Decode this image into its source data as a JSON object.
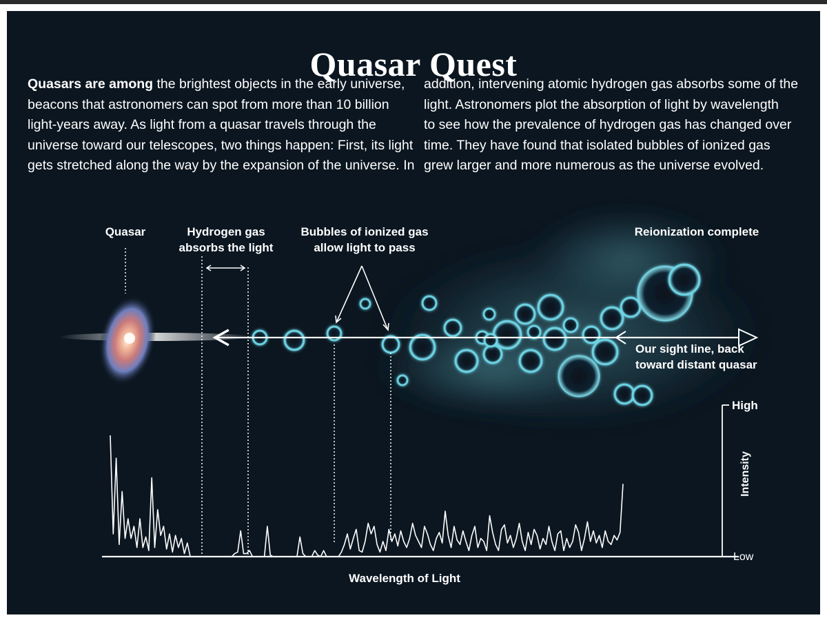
{
  "title": "Quasar Quest",
  "intro": {
    "left_lead": "Quasars are among",
    "left_lines": [
      " the brightest objects in the early universe,",
      "beacons that astronomers can spot from more than 10 billion",
      "light-years away. As light from a quasar travels through the",
      "universe toward our telescopes, two things happen: First, its light",
      "gets stretched along the way by the expansion of the universe. In"
    ],
    "right_lines": [
      "addition, intervening atomic hydrogen gas absorbs some of the",
      "light. Astronomers plot the absorption of light by wavelength",
      "to see how the prevalence of hydrogen gas has changed over",
      "time. They have found that isolated bubbles of ionized gas",
      "grew larger and more numerous as the universe evolved."
    ]
  },
  "labels": {
    "quasar": "Quasar",
    "hydrogen": [
      "Hydrogen gas",
      "absorbs the light"
    ],
    "bubbles": [
      "Bubbles of ionized gas",
      "allow light to pass"
    ],
    "reionization": "Reionization complete",
    "sightline": [
      "Our sight line, back",
      "toward distant quasar"
    ]
  },
  "chart_data": {
    "type": "line",
    "xlabel": "Wavelength of Light",
    "ylabel": "Intensity",
    "y_top_label": "High",
    "y_bottom_label": "Low",
    "y_scale": [
      0,
      100
    ],
    "series": [
      {
        "values": [
          80,
          15,
          65,
          8,
          43,
          12,
          25,
          12,
          20,
          6,
          25,
          6,
          13,
          4,
          52,
          6,
          31,
          14,
          20,
          5,
          15,
          3,
          14,
          6,
          12,
          2,
          9,
          0,
          0,
          0,
          0,
          0,
          0,
          0,
          0,
          0,
          0,
          0,
          0,
          0,
          0,
          0,
          2,
          3,
          17,
          2,
          2,
          4,
          0,
          0,
          0,
          0,
          0,
          20,
          1,
          0,
          0,
          0,
          0,
          0,
          0,
          0,
          0,
          0,
          13,
          2,
          0,
          0,
          0,
          4,
          1,
          0,
          4,
          0,
          0,
          0,
          0,
          0,
          3,
          8,
          15,
          5,
          12,
          18,
          4,
          3,
          10,
          22,
          15,
          20,
          8,
          3,
          10,
          4,
          18,
          10,
          15,
          7,
          17,
          10,
          6,
          12,
          22,
          14,
          10,
          6,
          20,
          15,
          8,
          4,
          12,
          16,
          9,
          30,
          14,
          6,
          20,
          11,
          8,
          17,
          10,
          4,
          14,
          20,
          6,
          12,
          10,
          4,
          27,
          16,
          8,
          4,
          18,
          21,
          9,
          14,
          6,
          12,
          22,
          10,
          4,
          16,
          8,
          18,
          14,
          5,
          12,
          8,
          20,
          10,
          4,
          15,
          17,
          4,
          12,
          6,
          10,
          21,
          16,
          4,
          12,
          23,
          10,
          17,
          9,
          14,
          6,
          17,
          10,
          8,
          14,
          11,
          16,
          48
        ]
      }
    ]
  },
  "colors": {
    "background": "#0b1620",
    "bubble_glow": "#6fd8ea",
    "text": "#ffffff"
  }
}
